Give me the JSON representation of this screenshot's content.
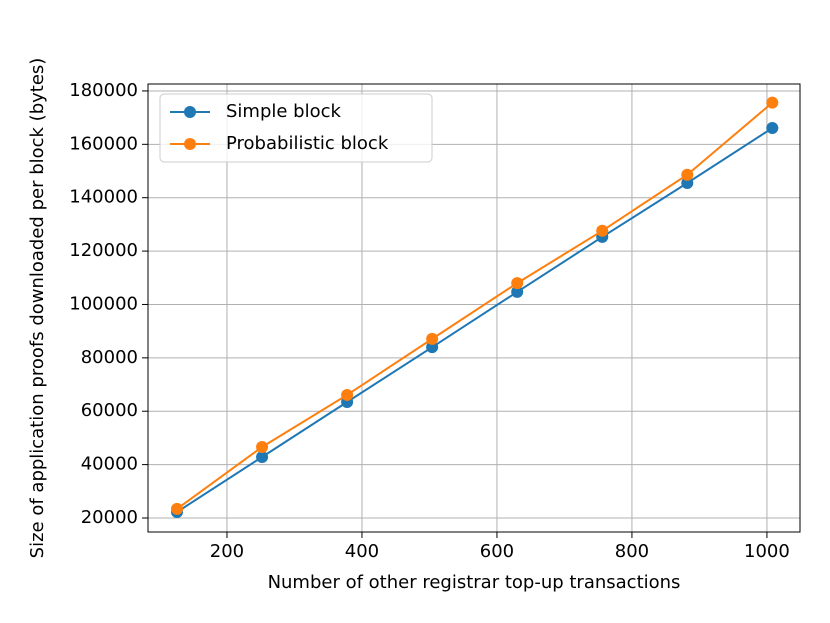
{
  "chart_data": {
    "type": "line",
    "x_label": "Number of other registrar top-up transactions",
    "y_label": "Size of application proofs downloaded per block (bytes)",
    "x": [
      126,
      252,
      378,
      504,
      630,
      756,
      882,
      1008
    ],
    "series": [
      {
        "name": "Simple block",
        "color": "#1f77b4",
        "values": [
          22250,
          42850,
          63450,
          84000,
          104700,
          125300,
          145500,
          166100
        ]
      },
      {
        "name": "Probabilistic block",
        "color": "#ff7f0e",
        "values": [
          23400,
          46600,
          66100,
          87100,
          108000,
          127600,
          148600,
          175600
        ]
      }
    ],
    "xlim": [
      83,
      1049
    ],
    "ylim": [
      14750,
      182600
    ],
    "xticks": [
      200,
      400,
      600,
      800,
      1000
    ],
    "yticks": [
      20000,
      40000,
      60000,
      80000,
      100000,
      120000,
      140000,
      160000,
      180000
    ],
    "grid": true,
    "legend": "upper left"
  }
}
